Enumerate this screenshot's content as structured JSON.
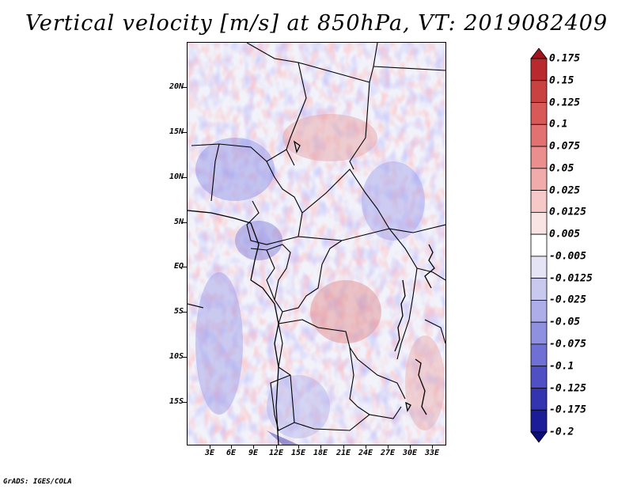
{
  "figure": {
    "title": "Vertical velocity [m/s] at 850hPa, VT: 2019082409",
    "credit": "GrADS: IGES/COLA"
  },
  "map": {
    "variable": "Vertical velocity",
    "units": "m/s",
    "level": "850hPa",
    "valid_time": "2019082409",
    "lat_labels": [
      "20N",
      "15N",
      "10N",
      "5N",
      "EQ",
      "5S",
      "10S",
      "15S"
    ],
    "lon_labels": [
      "3E",
      "6E",
      "9E",
      "12E",
      "15E",
      "18E",
      "21E",
      "24E",
      "27E",
      "30E",
      "33E"
    ]
  },
  "colorbar": {
    "labels": [
      "0.175",
      "0.15",
      "0.125",
      "0.1",
      "0.075",
      "0.05",
      "0.025",
      "0.0125",
      "0.005",
      "-0.005",
      "-0.0125",
      "-0.025",
      "-0.05",
      "-0.075",
      "-0.1",
      "-0.125",
      "-0.175",
      "-0.2"
    ],
    "colors": [
      "#a0141e",
      "#b82a2e",
      "#c94242",
      "#d95858",
      "#e27272",
      "#ea8e8e",
      "#f1abab",
      "#f6c8c8",
      "#fae3e3",
      "#ffffff",
      "#e4e4f6",
      "#c9c9ef",
      "#adadea",
      "#9090e0",
      "#7070d4",
      "#5050c4",
      "#3434b0",
      "#1c1c98",
      "#0c0c7a"
    ]
  }
}
